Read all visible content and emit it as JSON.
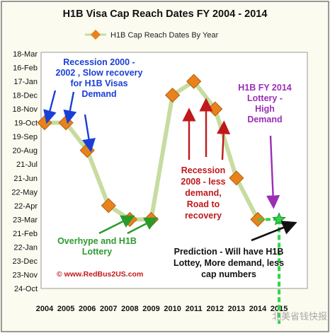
{
  "chart_data": {
    "type": "line",
    "title": "H1B Visa  Cap Reach Dates FY 2004 - 2014",
    "legend": {
      "label": "H1B Cap Reach Dates By Year",
      "position": "top"
    },
    "y_ticks": [
      "18-Mar",
      "16-Feb",
      "17-Jan",
      "18-Dec",
      "18-Nov",
      "19-Oct",
      "19-Sep",
      "20-Aug",
      "21-Jul",
      "21-Jun",
      "22-May",
      "22-Apr",
      "23-Mar",
      "21-Feb",
      "22-Jan",
      "23-Dec",
      "23-Nov",
      "24-Oct"
    ],
    "x": [
      "2004",
      "2005",
      "2006",
      "2007",
      "2008",
      "2009",
      "2010",
      "2011",
      "2012",
      "2013",
      "2014",
      "2015"
    ],
    "series": [
      {
        "name": "H1B Cap Reach Dates By Year",
        "x": [
          "2004",
          "2005",
          "2006",
          "2007",
          "2008",
          "2009",
          "2010",
          "2011",
          "2012",
          "2013",
          "2014"
        ],
        "values": [
          "19-Oct",
          "19-Oct",
          "20-Aug",
          "22-Apr",
          "23-Mar",
          "23-Mar",
          "18-Dec",
          "17-Jan",
          "18-Nov",
          "21-Jun",
          "23-Mar"
        ]
      }
    ],
    "prediction": {
      "x": "2015",
      "value": "23-Mar"
    },
    "annotations": {
      "recession_2000": [
        "Recession 2000 -",
        "2002 , Slow recovery",
        "for H1B Visas",
        "Demand"
      ],
      "h1b_2014": [
        "H1B FY 2014",
        "Lottery -",
        "High",
        "Demand"
      ],
      "recession_2008": [
        "Recession",
        "2008 - less",
        "demand,",
        "Road to",
        "recovery"
      ],
      "overhype": [
        "Overhype and H1B",
        "Lottery"
      ],
      "prediction": [
        "Prediction - Will have H1B",
        "Lottey, More demand, less",
        "cap  numbers"
      ],
      "copyright": "© www.RedBus2US.com"
    },
    "colors": {
      "line": "#c8dca0",
      "marker": "#e8821c",
      "prediction_star": "#2fd44a",
      "blue_text": "#1a3fd6",
      "purple_text": "#9a2fb5",
      "red_text": "#c0181b",
      "green_text": "#2f9a2f"
    },
    "watermark": "北美省钱快报"
  }
}
